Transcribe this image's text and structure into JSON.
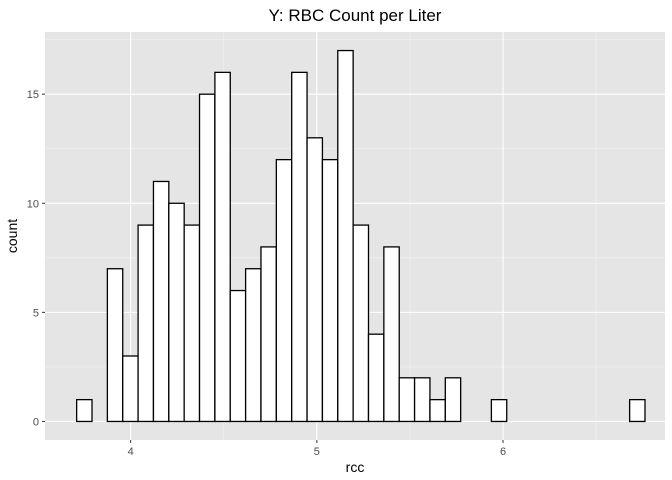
{
  "chart_data": {
    "type": "bar",
    "title": "Y: RBC Count per Liter",
    "xlabel": "rcc",
    "ylabel": "count",
    "bins": {
      "start": 3.71,
      "width": 0.0825,
      "counts": [
        1,
        0,
        7,
        3,
        9,
        11,
        10,
        9,
        15,
        16,
        6,
        7,
        8,
        12,
        16,
        13,
        12,
        17,
        9,
        4,
        8,
        2,
        2,
        1,
        2,
        0,
        0,
        1,
        0,
        0,
        0,
        0,
        0,
        0,
        0,
        0,
        1
      ]
    },
    "xlim": [
      3.54,
      6.87
    ],
    "ylim": [
      -0.85,
      17.85
    ],
    "x_ticks": [
      {
        "value": 4,
        "label": "4"
      },
      {
        "value": 5,
        "label": "5"
      },
      {
        "value": 6,
        "label": "6"
      }
    ],
    "y_ticks": [
      {
        "value": 0,
        "label": "0"
      },
      {
        "value": 5,
        "label": "5"
      },
      {
        "value": 10,
        "label": "10"
      },
      {
        "value": 15,
        "label": "15"
      }
    ],
    "grid": true,
    "panel_color": "#e5e5e5",
    "bar_fill": "#ffffff",
    "bar_outline": "#000000"
  }
}
